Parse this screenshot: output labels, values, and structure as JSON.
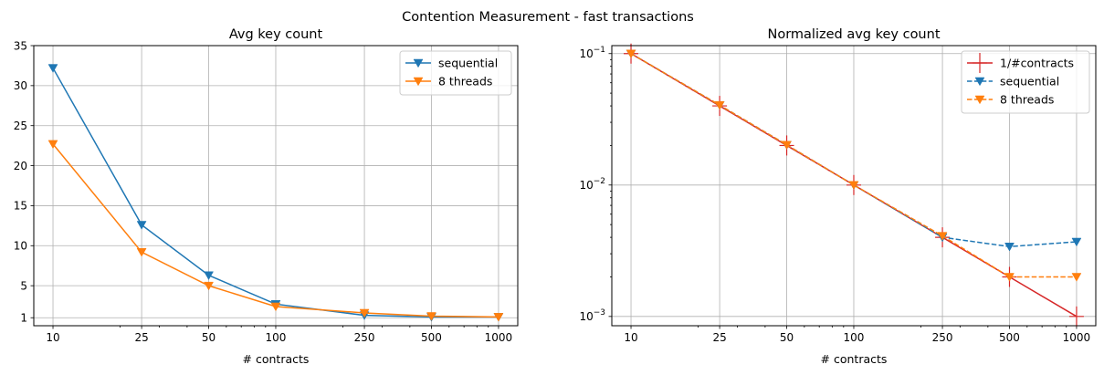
{
  "figure": {
    "suptitle": "Contention Measurement - fast transactions"
  },
  "chart_data": [
    {
      "type": "line",
      "title": "Avg key count",
      "xlabel": "# contracts",
      "ylabel": "",
      "x_scale": "log",
      "x": [
        10,
        25,
        50,
        100,
        250,
        500,
        1000
      ],
      "x_tick_labels": [
        "10",
        "25",
        "50",
        "100",
        "250",
        "500",
        "1000"
      ],
      "y_scale": "linear",
      "ylim": [
        0,
        35
      ],
      "y_ticks": [
        1,
        5,
        10,
        15,
        20,
        25,
        30,
        35
      ],
      "y_tick_labels": [
        "1",
        "5",
        "10",
        "15",
        "20",
        "25",
        "30",
        "35"
      ],
      "grid": true,
      "legend_position": "top-right",
      "series": [
        {
          "name": "sequential",
          "color": "#1f77b4",
          "linestyle": "solid",
          "marker": "triangle-down",
          "values": [
            32.2,
            12.6,
            6.3,
            2.7,
            1.3,
            1.1,
            1.1
          ]
        },
        {
          "name": "8 threads",
          "color": "#ff7f0e",
          "linestyle": "solid",
          "marker": "triangle-down",
          "values": [
            22.7,
            9.2,
            5.0,
            2.4,
            1.6,
            1.2,
            1.1
          ]
        }
      ]
    },
    {
      "type": "line",
      "title": "Normalized avg key count",
      "xlabel": "# contracts",
      "ylabel": "",
      "x_scale": "log",
      "x": [
        10,
        25,
        50,
        100,
        250,
        500,
        1000
      ],
      "x_tick_labels": [
        "10",
        "25",
        "50",
        "100",
        "250",
        "500",
        "1000"
      ],
      "y_scale": "log",
      "ylim": [
        0.00085,
        0.115
      ],
      "y_ticks": [
        0.001,
        0.01,
        0.1
      ],
      "y_tick_labels": [
        {
          "base": "10",
          "exp": "−3"
        },
        {
          "base": "10",
          "exp": "−2"
        },
        {
          "base": "10",
          "exp": "−1"
        }
      ],
      "grid": true,
      "legend_position": "top-right",
      "series": [
        {
          "name": "1/#contracts",
          "color": "#d62728",
          "linestyle": "solid",
          "marker": "plus",
          "values": [
            0.1,
            0.04,
            0.02,
            0.01,
            0.004,
            0.002,
            0.001
          ]
        },
        {
          "name": "sequential",
          "color": "#1f77b4",
          "linestyle": "dashed",
          "marker": "triangle-down",
          "values": [
            0.1,
            0.0405,
            0.0202,
            0.01,
            0.004,
            0.0034,
            0.0037
          ]
        },
        {
          "name": "8 threads",
          "color": "#ff7f0e",
          "linestyle": "dashed",
          "marker": "triangle-down",
          "values": [
            0.1,
            0.0405,
            0.0202,
            0.01,
            0.0041,
            0.002,
            0.002
          ]
        }
      ]
    }
  ]
}
